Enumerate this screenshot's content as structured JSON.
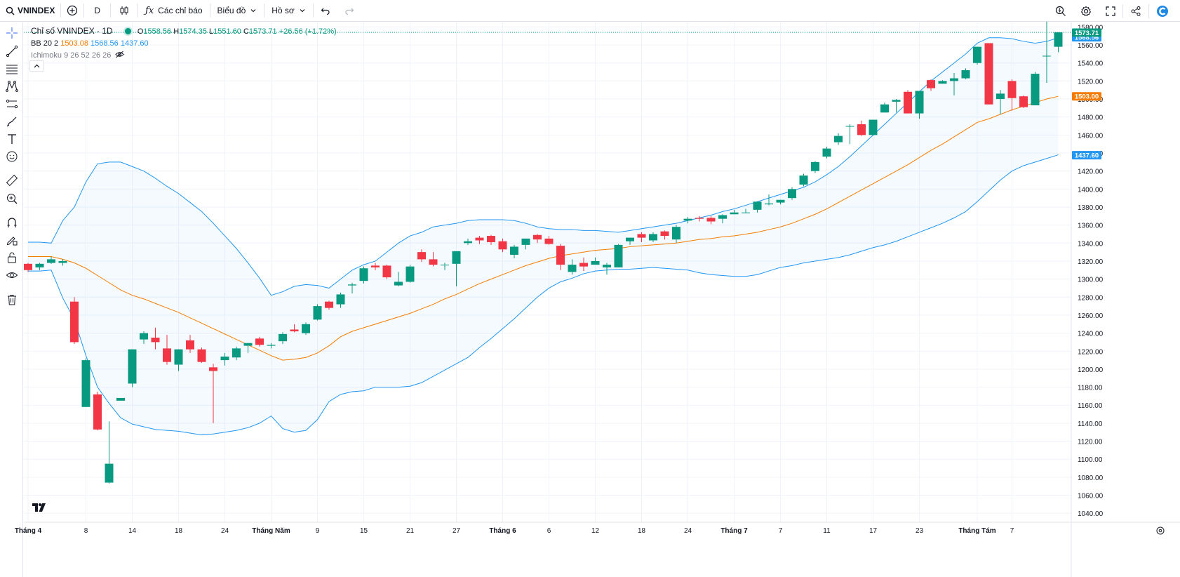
{
  "toolbar": {
    "symbol": "VNINDEX",
    "interval": "D",
    "indicators_label": "Các chỉ báo",
    "chart_label": "Biểu đồ",
    "profile_label": "Hồ sơ"
  },
  "legend": {
    "title": "Chỉ số VNINDEX · 1D",
    "o_label": "O",
    "o": "1558.56",
    "h_label": "H",
    "h": "1574.35",
    "l_label": "L",
    "l": "1551.60",
    "c_label": "C",
    "c": "1573.71",
    "change": "+26.56 (+1.72%)",
    "bb_label": "BB 20 2",
    "bb_mid": "1503.08",
    "bb_upper": "1568.56",
    "bb_lower": "1437.60",
    "ichimoku_label": "Ichimoku 9 26 52 26 26"
  },
  "colors": {
    "up": "#089981",
    "down": "#f23645",
    "bb_band": "#2196f3",
    "bb_mid": "#f57c00",
    "grid": "#f0f3fa"
  },
  "icons": [
    "crosshair-icon",
    "trend-line-icon",
    "fib-icon",
    "pattern-icon",
    "forecast-icon",
    "brush-icon",
    "text-icon",
    "emoji-icon",
    "ruler-icon",
    "zoom-in-icon",
    "magnet-icon",
    "lock-drawing-icon",
    "unlock-icon",
    "eye-icon",
    "trash-icon"
  ],
  "chart_data": {
    "type": "candlestick",
    "y_ticks": [
      1040,
      1060,
      1080,
      1100,
      1120,
      1140,
      1160,
      1180,
      1200,
      1220,
      1240,
      1260,
      1280,
      1300,
      1320,
      1340,
      1360,
      1380,
      1400,
      1420,
      1440,
      1460,
      1480,
      1500,
      1520,
      1540,
      1560,
      1580
    ],
    "ylim": [
      1030,
      1585
    ],
    "x_labels": [
      {
        "i": 0,
        "label": "Tháng 4",
        "bold": true
      },
      {
        "i": 5,
        "label": "8"
      },
      {
        "i": 9,
        "label": "14"
      },
      {
        "i": 13,
        "label": "18"
      },
      {
        "i": 17,
        "label": "24"
      },
      {
        "i": 21,
        "label": "Tháng Năm",
        "bold": true
      },
      {
        "i": 25,
        "label": "9"
      },
      {
        "i": 29,
        "label": "15"
      },
      {
        "i": 33,
        "label": "21"
      },
      {
        "i": 37,
        "label": "27"
      },
      {
        "i": 41,
        "label": "Tháng 6",
        "bold": true
      },
      {
        "i": 45,
        "label": "6"
      },
      {
        "i": 49,
        "label": "12"
      },
      {
        "i": 53,
        "label": "18"
      },
      {
        "i": 57,
        "label": "24"
      },
      {
        "i": 61,
        "label": "Tháng 7",
        "bold": true
      },
      {
        "i": 65,
        "label": "7"
      },
      {
        "i": 69,
        "label": "11"
      },
      {
        "i": 73,
        "label": "17"
      },
      {
        "i": 77,
        "label": "23"
      },
      {
        "i": 82,
        "label": "Tháng Tám",
        "bold": true
      },
      {
        "i": 85,
        "label": "7"
      }
    ],
    "candles": [
      [
        1317,
        1318,
        1308,
        1310
      ],
      [
        1313,
        1318,
        1310,
        1317
      ],
      [
        1318,
        1325,
        1317,
        1322
      ],
      [
        1318,
        1322,
        1315,
        1320
      ],
      [
        1275,
        1280,
        1228,
        1230
      ],
      [
        1158,
        1212,
        1158,
        1210
      ],
      [
        1172,
        1175,
        1132,
        1133
      ],
      [
        1074,
        1142,
        1073,
        1095
      ],
      [
        1165,
        1168,
        1165,
        1168
      ],
      [
        1184,
        1222,
        1180,
        1222
      ],
      [
        1233,
        1242,
        1228,
        1240
      ],
      [
        1235,
        1246,
        1222,
        1230
      ],
      [
        1223,
        1238,
        1205,
        1208
      ],
      [
        1205,
        1222,
        1198,
        1222
      ],
      [
        1232,
        1238,
        1218,
        1222
      ],
      [
        1222,
        1224,
        1207,
        1208
      ],
      [
        1202,
        1206,
        1140,
        1198
      ],
      [
        1210,
        1218,
        1204,
        1214
      ],
      [
        1213,
        1225,
        1210,
        1223
      ],
      [
        1226,
        1229,
        1218,
        1229
      ],
      [
        1234,
        1236,
        1225,
        1227
      ],
      [
        1226,
        1229,
        1223,
        1227
      ],
      [
        1231,
        1241,
        1228,
        1239
      ],
      [
        1244,
        1250,
        1241,
        1242
      ],
      [
        1240,
        1252,
        1238,
        1250
      ],
      [
        1255,
        1272,
        1254,
        1270
      ],
      [
        1275,
        1276,
        1266,
        1268
      ],
      [
        1272,
        1285,
        1268,
        1283
      ],
      [
        1293,
        1296,
        1284,
        1294
      ],
      [
        1298,
        1314,
        1295,
        1312
      ],
      [
        1315,
        1318,
        1310,
        1313
      ],
      [
        1315,
        1316,
        1300,
        1302
      ],
      [
        1293,
        1308,
        1292,
        1297
      ],
      [
        1297,
        1316,
        1296,
        1314
      ],
      [
        1330,
        1333,
        1319,
        1322
      ],
      [
        1322,
        1330,
        1314,
        1316
      ],
      [
        1316,
        1318,
        1310,
        1316
      ],
      [
        1317,
        1330,
        1292,
        1331
      ],
      [
        1340,
        1345,
        1338,
        1342
      ],
      [
        1346,
        1348,
        1339,
        1343
      ],
      [
        1348,
        1349,
        1338,
        1341
      ],
      [
        1342,
        1345,
        1330,
        1333
      ],
      [
        1327,
        1338,
        1323,
        1336
      ],
      [
        1338,
        1345,
        1333,
        1345
      ],
      [
        1349,
        1350,
        1340,
        1344
      ],
      [
        1345,
        1348,
        1338,
        1339
      ],
      [
        1337,
        1339,
        1310,
        1316
      ],
      [
        1308,
        1322,
        1305,
        1316
      ],
      [
        1318,
        1324,
        1309,
        1314
      ],
      [
        1316,
        1324,
        1316,
        1320
      ],
      [
        1313,
        1318,
        1305,
        1316
      ],
      [
        1313,
        1339,
        1313,
        1338
      ],
      [
        1342,
        1346,
        1338,
        1346
      ],
      [
        1350,
        1352,
        1341,
        1346
      ],
      [
        1343,
        1352,
        1341,
        1350
      ],
      [
        1353,
        1354,
        1344,
        1348
      ],
      [
        1344,
        1360,
        1340,
        1358
      ],
      [
        1365,
        1369,
        1362,
        1367
      ],
      [
        1368,
        1370,
        1364,
        1367
      ],
      [
        1368,
        1370,
        1361,
        1364
      ],
      [
        1367,
        1372,
        1362,
        1371
      ],
      [
        1372,
        1377,
        1372,
        1374
      ],
      [
        1374,
        1378,
        1374,
        1374
      ],
      [
        1377,
        1386,
        1374,
        1386
      ],
      [
        1383,
        1394,
        1382,
        1384
      ],
      [
        1385,
        1388,
        1383,
        1388
      ],
      [
        1390,
        1402,
        1388,
        1400
      ],
      [
        1405,
        1417,
        1403,
        1415
      ],
      [
        1420,
        1431,
        1418,
        1430
      ],
      [
        1436,
        1447,
        1434,
        1445
      ],
      [
        1452,
        1462,
        1449,
        1459
      ],
      [
        1470,
        1472,
        1450,
        1470
      ],
      [
        1472,
        1476,
        1459,
        1460
      ],
      [
        1460,
        1477,
        1459,
        1477
      ],
      [
        1485,
        1496,
        1485,
        1494
      ],
      [
        1497,
        1500,
        1485,
        1499
      ],
      [
        1508,
        1510,
        1484,
        1484
      ],
      [
        1484,
        1508,
        1478,
        1509
      ],
      [
        1521,
        1522,
        1509,
        1512
      ],
      [
        1517,
        1521,
        1517,
        1520
      ],
      [
        1520,
        1529,
        1504,
        1523
      ],
      [
        1523,
        1534,
        1522,
        1532
      ],
      [
        1540,
        1558,
        1538,
        1558
      ],
      [
        1562,
        1562,
        1494,
        1494
      ],
      [
        1500,
        1510,
        1483,
        1506
      ],
      [
        1520,
        1522,
        1487,
        1501
      ],
      [
        1503,
        1504,
        1490,
        1491
      ],
      [
        1493,
        1530,
        1493,
        1528
      ],
      [
        1548,
        1586,
        1518,
        1548
      ],
      [
        1558,
        1574,
        1552,
        1574
      ]
    ],
    "bb_upper": [
      1341,
      1341,
      1340,
      1365,
      1380,
      1408,
      1428,
      1430,
      1430,
      1425,
      1420,
      1412,
      1403,
      1395,
      1385,
      1375,
      1362,
      1348,
      1334,
      1318,
      1301,
      1282,
      1286,
      1292,
      1294,
      1293,
      1290,
      1300,
      1310,
      1316,
      1320,
      1330,
      1340,
      1348,
      1352,
      1358,
      1360,
      1362,
      1365,
      1366,
      1366,
      1366,
      1365,
      1362,
      1358,
      1356,
      1355,
      1355,
      1354,
      1354,
      1353,
      1352,
      1354,
      1356,
      1358,
      1360,
      1362,
      1365,
      1368,
      1371,
      1375,
      1378,
      1382,
      1386,
      1390,
      1394,
      1398,
      1402,
      1408,
      1416,
      1425,
      1436,
      1448,
      1460,
      1472,
      1484,
      1496,
      1508,
      1520,
      1530,
      1540,
      1550,
      1562,
      1568,
      1568,
      1567,
      1564,
      1562,
      1564,
      1568
    ],
    "bb_mid": [
      1325,
      1325,
      1325,
      1322,
      1318,
      1312,
      1304,
      1296,
      1288,
      1282,
      1278,
      1273,
      1268,
      1263,
      1257,
      1251,
      1245,
      1239,
      1233,
      1227,
      1221,
      1215,
      1210,
      1211,
      1213,
      1218,
      1226,
      1236,
      1242,
      1246,
      1250,
      1254,
      1258,
      1262,
      1267,
      1272,
      1278,
      1283,
      1289,
      1295,
      1300,
      1305,
      1310,
      1315,
      1319,
      1323,
      1326,
      1328,
      1330,
      1332,
      1333,
      1334,
      1336,
      1337,
      1338,
      1339,
      1340,
      1342,
      1344,
      1345,
      1347,
      1348,
      1350,
      1352,
      1355,
      1358,
      1362,
      1367,
      1372,
      1378,
      1385,
      1392,
      1399,
      1406,
      1413,
      1420,
      1427,
      1435,
      1443,
      1450,
      1458,
      1466,
      1474,
      1478,
      1483,
      1488,
      1492,
      1496,
      1500,
      1503
    ],
    "bb_lower": [
      1309,
      1309,
      1310,
      1279,
      1255,
      1215,
      1180,
      1162,
      1146,
      1139,
      1136,
      1133,
      1132,
      1131,
      1129,
      1127,
      1128,
      1130,
      1132,
      1135,
      1140,
      1148,
      1134,
      1130,
      1132,
      1144,
      1164,
      1172,
      1175,
      1176,
      1180,
      1180,
      1180,
      1181,
      1185,
      1192,
      1199,
      1206,
      1213,
      1224,
      1234,
      1245,
      1256,
      1268,
      1280,
      1290,
      1297,
      1301,
      1306,
      1309,
      1310,
      1311,
      1311,
      1312,
      1313,
      1312,
      1311,
      1310,
      1307,
      1305,
      1304,
      1303,
      1303,
      1305,
      1309,
      1313,
      1315,
      1318,
      1320,
      1322,
      1324,
      1327,
      1331,
      1335,
      1338,
      1342,
      1347,
      1352,
      1357,
      1362,
      1368,
      1375,
      1386,
      1398,
      1410,
      1420,
      1426,
      1430,
      1434,
      1438
    ],
    "last_price": "1573.71",
    "ichimoku_visible": false
  }
}
